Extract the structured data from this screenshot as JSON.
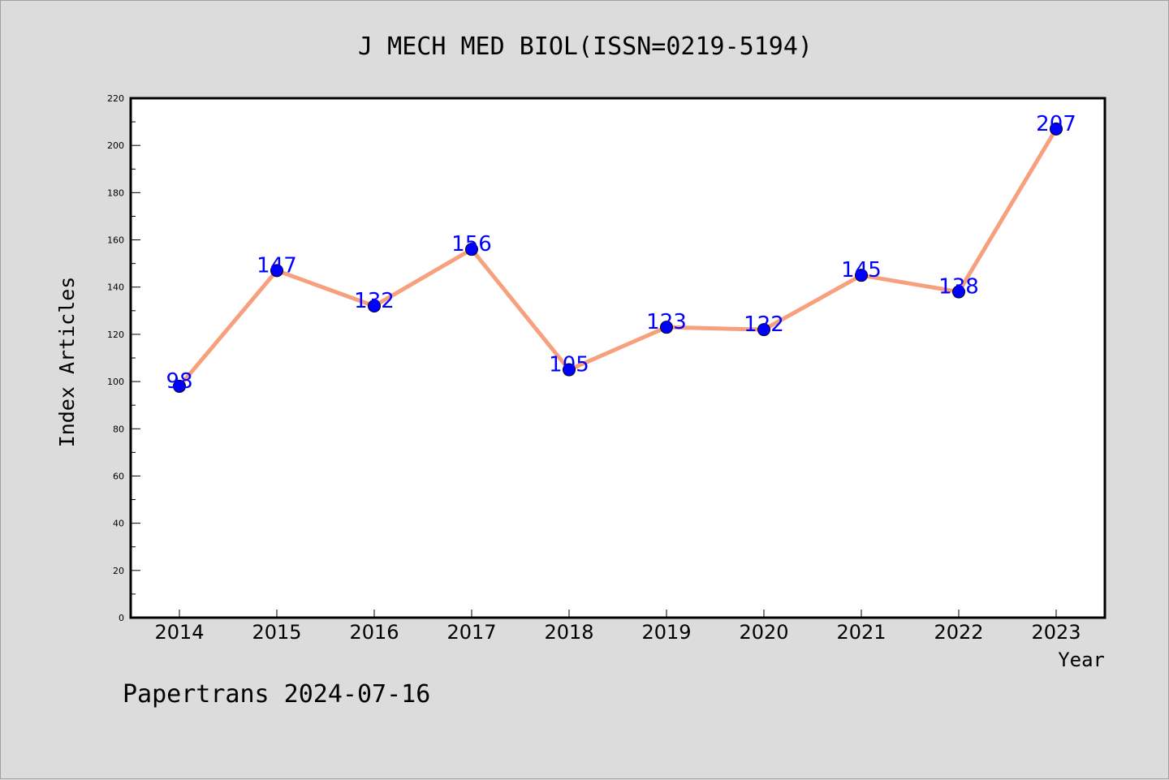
{
  "chart_data": {
    "type": "line",
    "title": "J MECH MED BIOL(ISSN=0219-5194)",
    "xlabel": "Year",
    "ylabel": "Index Articles",
    "categories": [
      "2014",
      "2015",
      "2016",
      "2017",
      "2018",
      "2019",
      "2020",
      "2021",
      "2022",
      "2023"
    ],
    "series": [
      {
        "values": [
          98,
          147,
          132,
          156,
          105,
          123,
          122,
          145,
          138,
          207
        ]
      }
    ],
    "data_labels": [
      "98",
      "147",
      "132",
      "156",
      "105",
      "123",
      "122",
      "145",
      "138",
      "207"
    ],
    "yticks": [
      "0",
      "20",
      "40",
      "60",
      "80",
      "100",
      "120",
      "140",
      "160",
      "180",
      "200",
      "220"
    ],
    "ylim": [
      0,
      220
    ],
    "grid": false,
    "legend": "none",
    "colors": {
      "line": "#f7a07e",
      "marker": "#0000ff",
      "label": "#0000ff",
      "background": "#dcdcdc",
      "plot_area": "#ffffff"
    }
  },
  "footer": {
    "text": "Papertrans 2024-07-16"
  }
}
